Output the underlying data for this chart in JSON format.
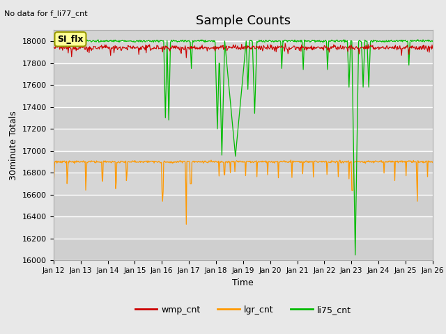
{
  "title": "Sample Counts",
  "top_left_text": "No data for f_li77_cnt",
  "ylabel": "30minute Totals",
  "xlabel": "Time",
  "ylim": [
    16000,
    18100
  ],
  "yticks": [
    16000,
    16200,
    16400,
    16600,
    16800,
    17000,
    17200,
    17400,
    17600,
    17800,
    18000
  ],
  "xtick_labels": [
    "Jan 12",
    "Jan 13",
    "Jan 14",
    "Jan 15",
    "Jan 16",
    "Jan 17",
    "Jan 18",
    "Jan 19",
    "Jan 20",
    "Jan 21",
    "Jan 22",
    "Jan 23",
    "Jan 24",
    "Jan 25",
    "Jan 26"
  ],
  "legend_box_label": "SI_flx",
  "legend_entries": [
    "wmp_cnt",
    "lgr_cnt",
    "li75_cnt"
  ],
  "legend_colors": [
    "#cc0000",
    "#ff9900",
    "#00bb00"
  ],
  "wmp_base": 17940,
  "lgr_base": 16900,
  "li75_base": 18000,
  "bg_color": "#e8e8e8",
  "plot_bg": "#d4d4d4",
  "title_fontsize": 13,
  "axis_label_fontsize": 9,
  "tick_fontsize": 8
}
